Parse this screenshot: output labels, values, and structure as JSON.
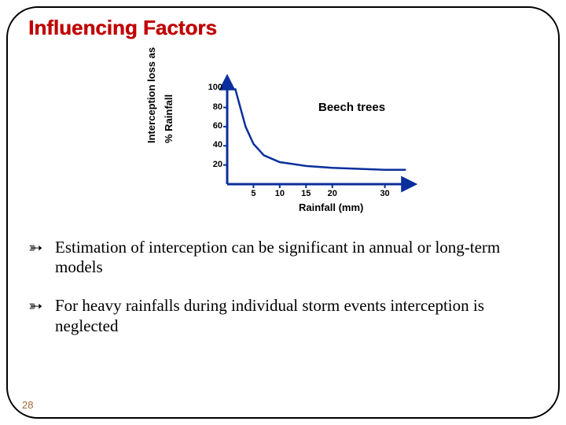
{
  "title": {
    "text": "Influencing Factors",
    "fontsize": 26,
    "color": "#c00000"
  },
  "page_number": {
    "text": "28",
    "fontsize": 13,
    "color": "#a06a3a"
  },
  "bullets": [
    {
      "glyph": "➳",
      "text": "Estimation of interception can be significant in annual or long-term models",
      "fontsize": 21
    },
    {
      "glyph": "➳",
      "text": "For heavy rainfalls during individual storm events interception is neglected",
      "fontsize": 21
    }
  ],
  "chart": {
    "type": "line",
    "ylabel_line1": "Interception loss as",
    "ylabel_line2": "% Rainfall",
    "ylabel_fontsize": 13,
    "xlabel": "Rainfall (mm)",
    "xlabel_fontsize": 13,
    "series_label": "Beech trees",
    "series_label_fontsize": 15,
    "axis_color": "#0a2f9c",
    "axis_width": 3,
    "curve_color": "#0a2f9c",
    "curve_width": 2.5,
    "background_color": "#ffffff",
    "xlim": [
      0,
      35
    ],
    "ylim": [
      0,
      110
    ],
    "yticks": [
      20,
      40,
      60,
      80,
      100
    ],
    "xticks": [
      5,
      10,
      15,
      20,
      30
    ],
    "curve": [
      {
        "x": 1.5,
        "y": 100
      },
      {
        "x": 2.5,
        "y": 80
      },
      {
        "x": 3.5,
        "y": 60
      },
      {
        "x": 5,
        "y": 42
      },
      {
        "x": 7,
        "y": 30
      },
      {
        "x": 10,
        "y": 23
      },
      {
        "x": 15,
        "y": 19
      },
      {
        "x": 20,
        "y": 17
      },
      {
        "x": 25,
        "y": 16
      },
      {
        "x": 30,
        "y": 15
      },
      {
        "x": 34,
        "y": 15
      }
    ]
  }
}
